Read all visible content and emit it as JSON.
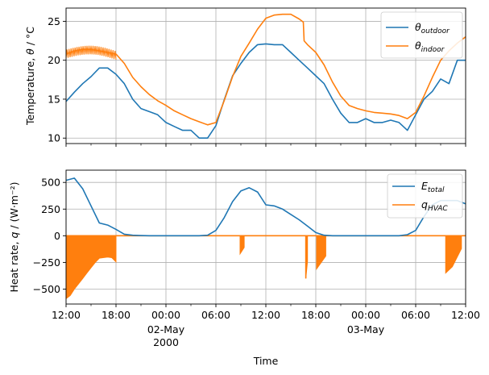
{
  "chart_data": [
    {
      "type": "line",
      "ylabel_prefix": "Temperature, ",
      "ylabel_symbol": "θ",
      "ylabel_suffix": " / °C",
      "ylim": [
        9.3,
        26.7
      ],
      "yticks": [
        10,
        15,
        20,
        25
      ],
      "grid": true,
      "legend": "top-right",
      "x_hours_range": [
        0,
        48
      ],
      "series": [
        {
          "name_symbol": "θ",
          "name_sub": "outdoor",
          "color": "#1f77b4",
          "points": [
            [
              0,
              14.7
            ],
            [
              1,
              15.9
            ],
            [
              2,
              17.0
            ],
            [
              3,
              17.9
            ],
            [
              4,
              19.0
            ],
            [
              5,
              19.0
            ],
            [
              6,
              18.2
            ],
            [
              7,
              17.0
            ],
            [
              8,
              15.0
            ],
            [
              9,
              13.8
            ],
            [
              10,
              13.4
            ],
            [
              11,
              13.0
            ],
            [
              12,
              12.0
            ],
            [
              13,
              11.5
            ],
            [
              14,
              11.0
            ],
            [
              15,
              11.0
            ],
            [
              16,
              10.0
            ],
            [
              17,
              10.0
            ],
            [
              18,
              11.6
            ],
            [
              19,
              14.9
            ],
            [
              20,
              18.0
            ],
            [
              21,
              19.6
            ],
            [
              22,
              21.0
            ],
            [
              23,
              22.0
            ],
            [
              24,
              22.1
            ],
            [
              25,
              22.0
            ],
            [
              26,
              22.0
            ],
            [
              27,
              21.0
            ],
            [
              28,
              20.0
            ],
            [
              29,
              19.0
            ],
            [
              30,
              18.0
            ],
            [
              31,
              17.0
            ],
            [
              32,
              15.0
            ],
            [
              33,
              13.2
            ],
            [
              34,
              12.0
            ],
            [
              35,
              12.0
            ],
            [
              36,
              12.5
            ],
            [
              37,
              12.0
            ],
            [
              38,
              12.0
            ],
            [
              39,
              12.3
            ],
            [
              40,
              12.0
            ],
            [
              41,
              11.0
            ],
            [
              42,
              13.0
            ],
            [
              43,
              15.0
            ],
            [
              44,
              16.0
            ],
            [
              45,
              17.6
            ],
            [
              46,
              17.0
            ],
            [
              47,
              20.0
            ],
            [
              48,
              20.0
            ]
          ]
        },
        {
          "name_symbol": "θ",
          "name_sub": "indoor",
          "color": "#ff7f0e",
          "points": [
            [
              0,
              20.8
            ],
            [
              1,
              21.2
            ],
            [
              2,
              21.4
            ],
            [
              3,
              21.4
            ],
            [
              4,
              21.2
            ],
            [
              5,
              21.0
            ],
            [
              6,
              20.8
            ],
            [
              7,
              19.6
            ],
            [
              8,
              17.8
            ],
            [
              9,
              16.6
            ],
            [
              10,
              15.6
            ],
            [
              11,
              14.8
            ],
            [
              12,
              14.2
            ],
            [
              13,
              13.5
            ],
            [
              14,
              13.0
            ],
            [
              15,
              12.5
            ],
            [
              16,
              12.1
            ],
            [
              17,
              11.7
            ],
            [
              18,
              12.0
            ],
            [
              19,
              14.8
            ],
            [
              20,
              17.9
            ],
            [
              21,
              20.5
            ],
            [
              22,
              22.2
            ],
            [
              23,
              24.0
            ],
            [
              24,
              25.4
            ],
            [
              25,
              25.8
            ],
            [
              26,
              25.9
            ],
            [
              27,
              25.9
            ],
            [
              28,
              25.3
            ],
            [
              28.5,
              24.9
            ],
            [
              28.6,
              22.5
            ],
            [
              29,
              22.0
            ],
            [
              30,
              21.0
            ],
            [
              31,
              19.4
            ],
            [
              32,
              17.2
            ],
            [
              33,
              15.4
            ],
            [
              34,
              14.2
            ],
            [
              35,
              13.8
            ],
            [
              36,
              13.5
            ],
            [
              37,
              13.3
            ],
            [
              38,
              13.2
            ],
            [
              39,
              13.1
            ],
            [
              40,
              12.9
            ],
            [
              41,
              12.5
            ],
            [
              42,
              13.3
            ],
            [
              43,
              15.4
            ],
            [
              44,
              17.8
            ],
            [
              45,
              20.0
            ],
            [
              46,
              21.2
            ],
            [
              47,
              22.2
            ],
            [
              48,
              23.0
            ]
          ]
        }
      ]
    },
    {
      "type": "line",
      "ylabel_prefix": "Heat rate, ",
      "ylabel_symbol": "q",
      "ylabel_suffix": " / (W·m⁻²)",
      "ylim": [
        -640,
        615
      ],
      "yticks": [
        -500,
        -250,
        0,
        250,
        500
      ],
      "ytick_labels": [
        "−500",
        "−250",
        "0",
        "250",
        "500"
      ],
      "grid": true,
      "legend": "top-right",
      "x_hours_range": [
        0,
        48
      ],
      "series": [
        {
          "name_symbol": "E",
          "name_sub": "total",
          "color": "#1f77b4",
          "points": [
            [
              0,
              520
            ],
            [
              1,
              540
            ],
            [
              2,
              440
            ],
            [
              3,
              280
            ],
            [
              4,
              120
            ],
            [
              5,
              100
            ],
            [
              6,
              60
            ],
            [
              7,
              15
            ],
            [
              8,
              5
            ],
            [
              9,
              2
            ],
            [
              10,
              0
            ],
            [
              11,
              0
            ],
            [
              12,
              0
            ],
            [
              13,
              0
            ],
            [
              14,
              0
            ],
            [
              15,
              0
            ],
            [
              16,
              0
            ],
            [
              17,
              5
            ],
            [
              18,
              50
            ],
            [
              19,
              170
            ],
            [
              20,
              320
            ],
            [
              21,
              420
            ],
            [
              22,
              450
            ],
            [
              23,
              410
            ],
            [
              24,
              290
            ],
            [
              25,
              280
            ],
            [
              26,
              250
            ],
            [
              27,
              200
            ],
            [
              28,
              150
            ],
            [
              29,
              90
            ],
            [
              30,
              30
            ],
            [
              31,
              5
            ],
            [
              32,
              0
            ],
            [
              33,
              0
            ],
            [
              34,
              0
            ],
            [
              35,
              0
            ],
            [
              36,
              0
            ],
            [
              37,
              0
            ],
            [
              38,
              0
            ],
            [
              39,
              0
            ],
            [
              40,
              0
            ],
            [
              41,
              10
            ],
            [
              42,
              50
            ],
            [
              43,
              180
            ],
            [
              44,
              290
            ],
            [
              45,
              330
            ],
            [
              46,
              330
            ],
            [
              47,
              330
            ],
            [
              48,
              300
            ]
          ]
        },
        {
          "name_symbol": "q",
          "name_sub": "HVAC",
          "color": "#ff7f0e",
          "band": [
            [
              0,
              -590
            ],
            [
              0.5,
              -560
            ],
            [
              1,
              -500
            ],
            [
              1.5,
              -450
            ],
            [
              2,
              -400
            ],
            [
              2.5,
              -350
            ],
            [
              3,
              -300
            ],
            [
              3.5,
              -250
            ],
            [
              4,
              -210
            ],
            [
              5,
              -200
            ],
            [
              5.5,
              -205
            ],
            [
              6,
              -245
            ]
          ],
          "blocks": [
            [
              20.9,
              -170
            ],
            [
              21.4,
              -110
            ],
            [
              28.8,
              -400
            ],
            [
              29,
              -240
            ],
            [
              30,
              -200
            ],
            [
              30.1,
              -310
            ],
            [
              31.2,
              -190
            ],
            [
              45.6,
              -350
            ],
            [
              46.4,
              -290
            ],
            [
              47.5,
              -120
            ]
          ]
        }
      ]
    }
  ],
  "x_axis": {
    "tick_hours": [
      0,
      6,
      12,
      18,
      24,
      30,
      36,
      42,
      48
    ],
    "tick_labels": [
      "12:00",
      "18:00",
      "00:00",
      "06:00",
      "12:00",
      "18:00",
      "00:00",
      "06:00",
      "12:00"
    ],
    "date_label_1": "02-May",
    "year_label": "2000",
    "date_label_2": "03-May",
    "xlabel": "Time"
  }
}
